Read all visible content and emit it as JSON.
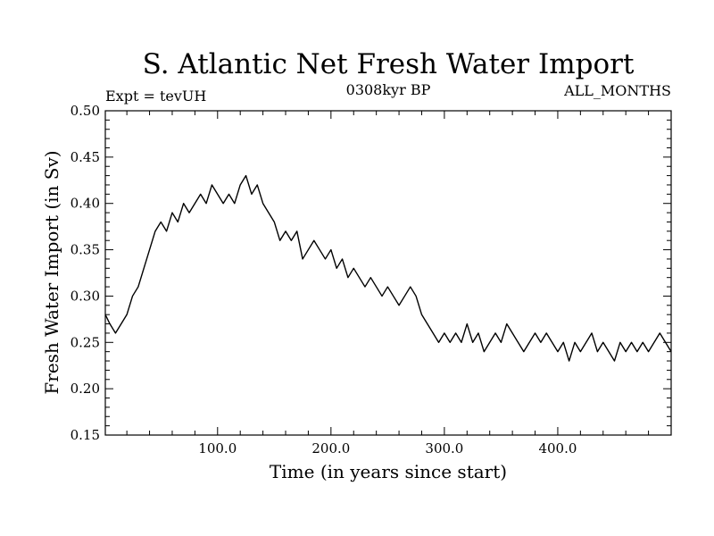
{
  "chart_data": {
    "type": "line",
    "title": "S. Atlantic Net Fresh Water Import",
    "subtitle_left": "Expt = tevUH",
    "subtitle_center": "0308kyr BP",
    "subtitle_right": "ALL_MONTHS",
    "xlabel": "Time (in years since start)",
    "ylabel": "Fresh Water Import (in Sv)",
    "xlim": [
      1,
      500
    ],
    "ylim": [
      0.15,
      0.5
    ],
    "x_ticks": [
      100,
      200,
      300,
      400
    ],
    "x_tick_labels": [
      "100.0",
      "200.0",
      "300.0",
      "400.0"
    ],
    "y_ticks": [
      0.15,
      0.2,
      0.25,
      0.3,
      0.35,
      0.4,
      0.45,
      0.5
    ],
    "y_tick_labels": [
      "0.15",
      "0.20",
      "0.25",
      "0.30",
      "0.35",
      "0.40",
      "0.45",
      "0.50"
    ],
    "grid": false,
    "series": [
      {
        "name": "Net Fresh Water Import",
        "color": "#000000",
        "x": [
          1,
          5,
          10,
          15,
          20,
          25,
          30,
          35,
          40,
          45,
          50,
          55,
          60,
          65,
          70,
          75,
          80,
          85,
          90,
          95,
          100,
          105,
          110,
          115,
          120,
          125,
          130,
          135,
          140,
          145,
          150,
          155,
          160,
          165,
          170,
          175,
          180,
          185,
          190,
          195,
          200,
          205,
          210,
          215,
          220,
          225,
          230,
          235,
          240,
          245,
          250,
          255,
          260,
          265,
          270,
          275,
          280,
          285,
          290,
          295,
          300,
          305,
          310,
          315,
          320,
          325,
          330,
          335,
          340,
          345,
          350,
          355,
          360,
          365,
          370,
          375,
          380,
          385,
          390,
          395,
          400,
          405,
          410,
          415,
          420,
          425,
          430,
          435,
          440,
          445,
          450,
          455,
          460,
          465,
          470,
          475,
          480,
          485,
          490,
          495,
          500
        ],
        "values": [
          0.28,
          0.27,
          0.26,
          0.27,
          0.28,
          0.3,
          0.31,
          0.33,
          0.35,
          0.37,
          0.38,
          0.37,
          0.39,
          0.38,
          0.4,
          0.39,
          0.4,
          0.41,
          0.4,
          0.42,
          0.41,
          0.4,
          0.41,
          0.4,
          0.42,
          0.43,
          0.41,
          0.42,
          0.4,
          0.39,
          0.38,
          0.36,
          0.37,
          0.36,
          0.37,
          0.34,
          0.35,
          0.36,
          0.35,
          0.34,
          0.35,
          0.33,
          0.34,
          0.32,
          0.33,
          0.32,
          0.31,
          0.32,
          0.31,
          0.3,
          0.31,
          0.3,
          0.29,
          0.3,
          0.31,
          0.3,
          0.28,
          0.27,
          0.26,
          0.25,
          0.26,
          0.25,
          0.26,
          0.25,
          0.27,
          0.25,
          0.26,
          0.24,
          0.25,
          0.26,
          0.25,
          0.27,
          0.26,
          0.25,
          0.24,
          0.25,
          0.26,
          0.25,
          0.26,
          0.25,
          0.24,
          0.25,
          0.23,
          0.25,
          0.24,
          0.25,
          0.26,
          0.24,
          0.25,
          0.24,
          0.23,
          0.25,
          0.24,
          0.25,
          0.24,
          0.25,
          0.24,
          0.25,
          0.26,
          0.25,
          0.24
        ]
      }
    ]
  }
}
